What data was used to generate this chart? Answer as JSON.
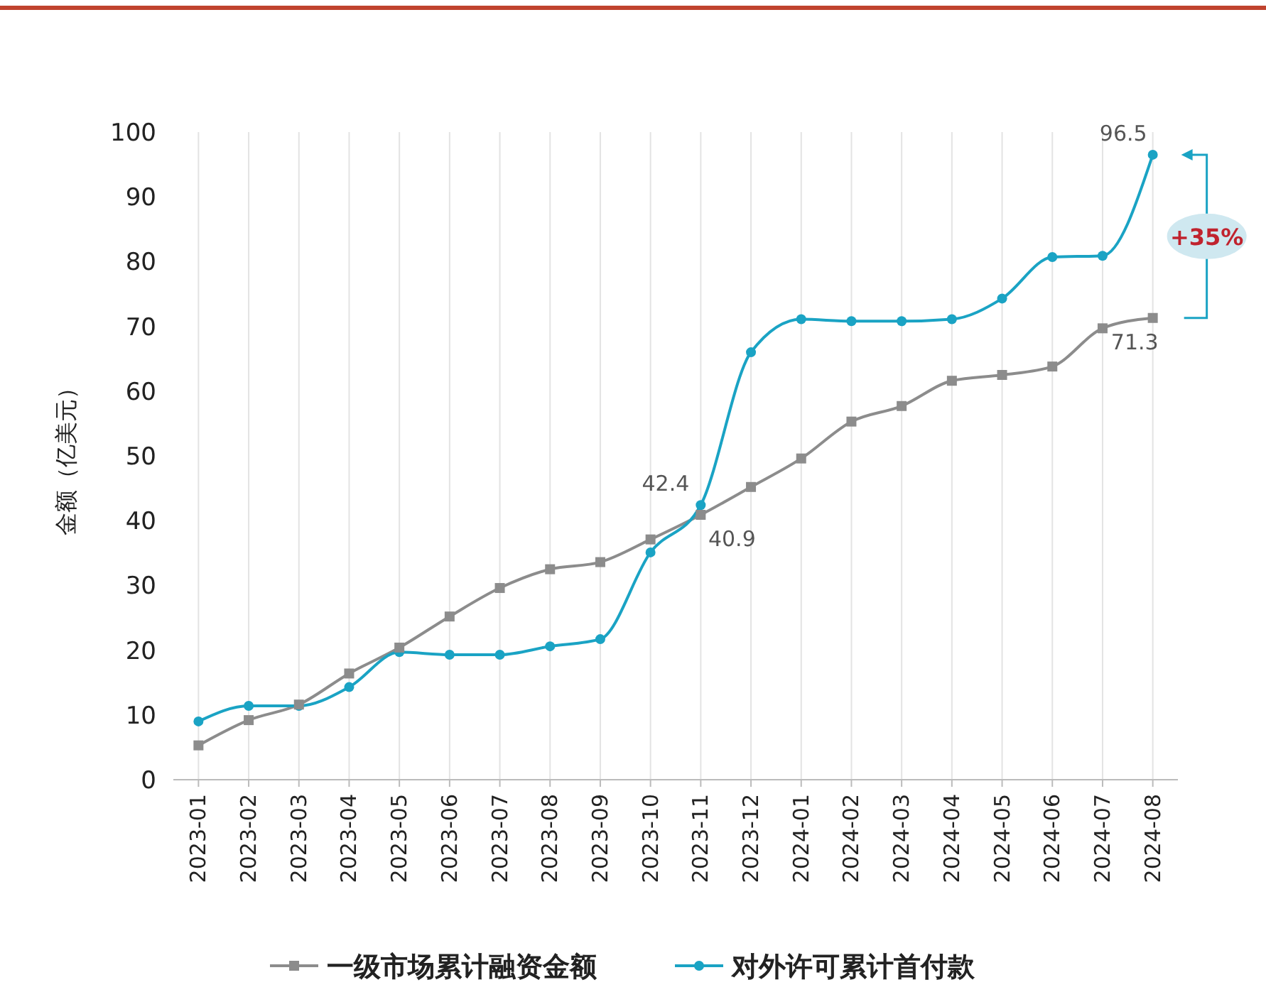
{
  "chart_data": {
    "type": "line",
    "ylabel": "金额（亿美元）",
    "categories": [
      "2023-01",
      "2023-02",
      "2023-03",
      "2023-04",
      "2023-05",
      "2023-06",
      "2023-07",
      "2023-08",
      "2023-09",
      "2023-10",
      "2023-11",
      "2023-12",
      "2024-01",
      "2024-02",
      "2024-03",
      "2024-04",
      "2024-05",
      "2024-06",
      "2024-07",
      "2024-08"
    ],
    "series": [
      {
        "name": "一级市场累计融资金额",
        "color": "#8c8c8c",
        "marker": "square",
        "values": [
          5.3,
          9.2,
          11.6,
          16.4,
          20.4,
          25.2,
          29.6,
          32.5,
          33.6,
          37.1,
          40.9,
          45.2,
          49.6,
          55.3,
          57.7,
          61.6,
          62.5,
          63.8,
          69.7,
          71.3
        ],
        "value_labels": [
          null,
          null,
          null,
          null,
          null,
          null,
          null,
          null,
          null,
          null,
          "40.9",
          null,
          null,
          null,
          null,
          null,
          null,
          null,
          null,
          "71.3"
        ]
      },
      {
        "name": "对外许可累计首付款",
        "color": "#1aa3c4",
        "marker": "circle",
        "values": [
          9.0,
          11.4,
          11.4,
          14.3,
          19.7,
          19.3,
          19.3,
          20.6,
          21.7,
          35.1,
          42.4,
          66.0,
          71.1,
          70.8,
          70.8,
          71.1,
          74.3,
          80.7,
          80.9,
          96.5
        ],
        "value_labels": [
          null,
          null,
          null,
          null,
          null,
          null,
          null,
          null,
          null,
          null,
          "42.4",
          null,
          null,
          null,
          null,
          null,
          null,
          null,
          null,
          "96.5"
        ]
      }
    ],
    "ylim": [
      0,
      100
    ],
    "yticks": [
      0,
      10,
      20,
      30,
      40,
      50,
      60,
      70,
      80,
      90,
      100
    ],
    "grid": "x",
    "legend": "bottom",
    "annotations": [
      "+35%"
    ]
  }
}
